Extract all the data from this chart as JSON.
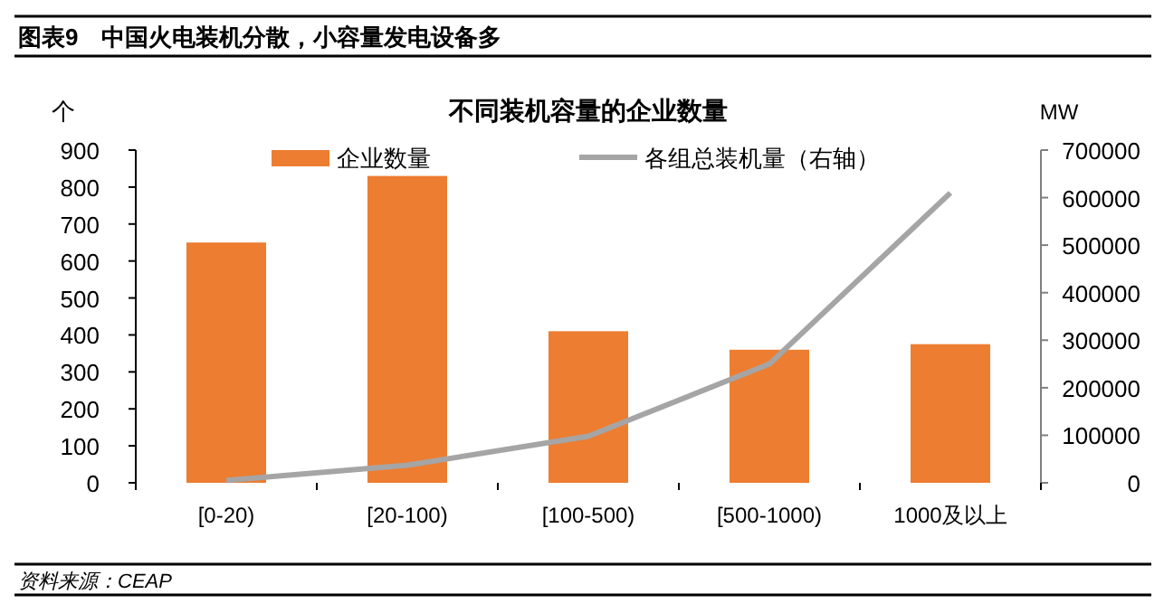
{
  "chart_data": {
    "type": "bar",
    "title": "不同装机容量的企业数量",
    "ylabel": "个",
    "y2label": "MW",
    "categories": [
      "[0-20)",
      "[20-100)",
      "[100-500)",
      "[500-1000)",
      "1000及以上"
    ],
    "series": [
      {
        "name": "企业数量",
        "color": "#ed7d31",
        "values": [
          650,
          830,
          410,
          360,
          375
        ]
      },
      {
        "name": "各组总装机量（右轴）",
        "type": "line",
        "axis": "y2",
        "color": "#a5a5a5",
        "values": [
          5000,
          37000,
          98000,
          250000,
          610000
        ]
      }
    ],
    "ylim": [
      0,
      900
    ],
    "yticks": [
      0,
      100,
      200,
      300,
      400,
      500,
      600,
      700,
      800,
      900
    ],
    "y2lim": [
      0,
      700000
    ],
    "y2ticks": [
      0,
      100000,
      200000,
      300000,
      400000,
      500000,
      600000,
      700000
    ],
    "legend": "top",
    "grid": false,
    "marker": "none",
    "annotations": [
      "图表9　中国火电装机分散，小容量发电设备多",
      "资料来源：CEAP"
    ]
  }
}
